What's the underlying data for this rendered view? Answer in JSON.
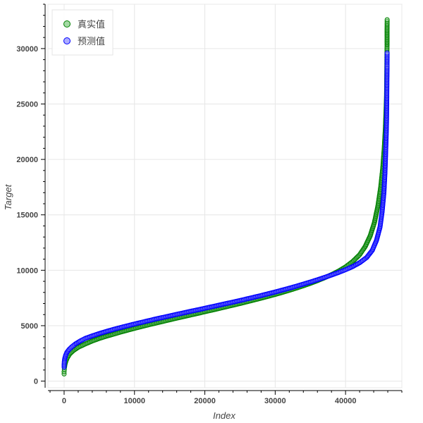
{
  "chart_data": {
    "type": "scatter",
    "title": "",
    "xlabel": "Index",
    "ylabel": "Target",
    "xlim": [
      -2300,
      48000
    ],
    "ylim": [
      -600,
      34000
    ],
    "x_ticks": [
      0,
      10000,
      20000,
      30000,
      40000
    ],
    "y_ticks": [
      0,
      5000,
      10000,
      15000,
      20000,
      25000,
      30000
    ],
    "x_tick_labels": [
      "0",
      "10000",
      "20000",
      "30000",
      "40000"
    ],
    "y_tick_labels": [
      "0",
      "5000",
      "10000",
      "15000",
      "20000",
      "25000",
      "30000"
    ],
    "grid": true,
    "legend_position": "top-left",
    "series": [
      {
        "name": "真实值",
        "color": "#008000",
        "fill": "#8fd18f",
        "points": [
          [
            0,
            650
          ],
          [
            0,
            850
          ],
          [
            30,
            1050
          ],
          [
            60,
            1250
          ],
          [
            120,
            1500
          ],
          [
            250,
            1800
          ],
          [
            450,
            2100
          ],
          [
            800,
            2450
          ],
          [
            1300,
            2750
          ],
          [
            2000,
            3050
          ],
          [
            3000,
            3350
          ],
          [
            4000,
            3620
          ],
          [
            5000,
            3850
          ],
          [
            6000,
            4050
          ],
          [
            7000,
            4230
          ],
          [
            8000,
            4420
          ],
          [
            9000,
            4590
          ],
          [
            10000,
            4760
          ],
          [
            11000,
            4920
          ],
          [
            12000,
            5080
          ],
          [
            13000,
            5230
          ],
          [
            14000,
            5380
          ],
          [
            15000,
            5530
          ],
          [
            16000,
            5680
          ],
          [
            17000,
            5820
          ],
          [
            18000,
            5970
          ],
          [
            19000,
            6110
          ],
          [
            20000,
            6260
          ],
          [
            21000,
            6400
          ],
          [
            22000,
            6550
          ],
          [
            23000,
            6700
          ],
          [
            24000,
            6850
          ],
          [
            25000,
            7000
          ],
          [
            26000,
            7160
          ],
          [
            27000,
            7320
          ],
          [
            28000,
            7480
          ],
          [
            29000,
            7650
          ],
          [
            30000,
            7820
          ],
          [
            31000,
            8000
          ],
          [
            32000,
            8190
          ],
          [
            33000,
            8390
          ],
          [
            34000,
            8600
          ],
          [
            35000,
            8820
          ],
          [
            36000,
            9060
          ],
          [
            37000,
            9320
          ],
          [
            38000,
            9600
          ],
          [
            39000,
            9920
          ],
          [
            40000,
            10300
          ],
          [
            41000,
            10780
          ],
          [
            42000,
            11400
          ],
          [
            42800,
            12150
          ],
          [
            43500,
            13100
          ],
          [
            44100,
            14300
          ],
          [
            44600,
            15800
          ],
          [
            45000,
            17500
          ],
          [
            45300,
            19300
          ],
          [
            45500,
            21000
          ],
          [
            45650,
            22700
          ],
          [
            45750,
            24300
          ],
          [
            45800,
            25300
          ],
          [
            45820,
            25800
          ],
          [
            45840,
            26500
          ],
          [
            45850,
            27300
          ],
          [
            45860,
            28000
          ],
          [
            45870,
            28700
          ],
          [
            45880,
            29500
          ],
          [
            45890,
            30000
          ],
          [
            45900,
            30300
          ],
          [
            45900,
            31700
          ],
          [
            45910,
            32300
          ],
          [
            45910,
            32600
          ]
        ]
      },
      {
        "name": "预测值",
        "color": "#0000ff",
        "fill": "#9999ff",
        "points": [
          [
            0,
            1250
          ],
          [
            0,
            1500
          ],
          [
            30,
            1750
          ],
          [
            80,
            2000
          ],
          [
            200,
            2300
          ],
          [
            400,
            2600
          ],
          [
            700,
            2850
          ],
          [
            1100,
            3100
          ],
          [
            1600,
            3350
          ],
          [
            2300,
            3620
          ],
          [
            3000,
            3850
          ],
          [
            4000,
            4080
          ],
          [
            5000,
            4290
          ],
          [
            6000,
            4480
          ],
          [
            7000,
            4660
          ],
          [
            8000,
            4830
          ],
          [
            9000,
            4990
          ],
          [
            10000,
            5150
          ],
          [
            11000,
            5300
          ],
          [
            12000,
            5450
          ],
          [
            13000,
            5600
          ],
          [
            14000,
            5740
          ],
          [
            15000,
            5880
          ],
          [
            16000,
            6020
          ],
          [
            17000,
            6160
          ],
          [
            18000,
            6300
          ],
          [
            19000,
            6430
          ],
          [
            20000,
            6570
          ],
          [
            21000,
            6710
          ],
          [
            22000,
            6850
          ],
          [
            23000,
            6990
          ],
          [
            24000,
            7130
          ],
          [
            25000,
            7270
          ],
          [
            26000,
            7420
          ],
          [
            27000,
            7570
          ],
          [
            28000,
            7720
          ],
          [
            29000,
            7880
          ],
          [
            30000,
            8040
          ],
          [
            31000,
            8210
          ],
          [
            32000,
            8380
          ],
          [
            33000,
            8560
          ],
          [
            34000,
            8750
          ],
          [
            35000,
            8940
          ],
          [
            36000,
            9140
          ],
          [
            37000,
            9350
          ],
          [
            38000,
            9570
          ],
          [
            39000,
            9800
          ],
          [
            40000,
            10050
          ],
          [
            41000,
            10330
          ],
          [
            42000,
            10680
          ],
          [
            43000,
            11150
          ],
          [
            43800,
            11800
          ],
          [
            44400,
            12700
          ],
          [
            44900,
            13900
          ],
          [
            45200,
            15300
          ],
          [
            45450,
            17000
          ],
          [
            45600,
            18800
          ],
          [
            45700,
            20600
          ],
          [
            45780,
            22300
          ],
          [
            45820,
            23300
          ],
          [
            45840,
            24400
          ],
          [
            45860,
            25600
          ],
          [
            45870,
            26400
          ],
          [
            45880,
            27200
          ],
          [
            45890,
            27800
          ],
          [
            45900,
            28400
          ],
          [
            45900,
            28700
          ],
          [
            45910,
            29200
          ],
          [
            45910,
            29600
          ]
        ]
      }
    ]
  }
}
